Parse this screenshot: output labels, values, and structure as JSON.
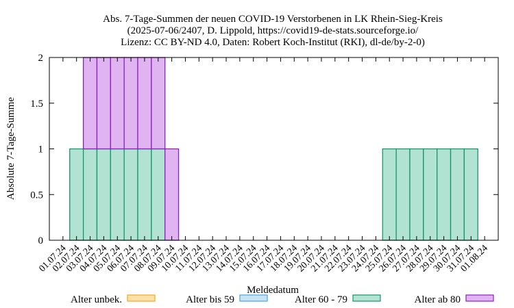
{
  "chart_data": {
    "type": "bar",
    "title_lines": [
      "Abs. 7-Tage-Summen der neuen COVID-19 Verstorbenen in LK Rhein-Sieg-Kreis",
      "(2025-07-06/2407, D. Lippold, https://covid19-de-stats.sourceforge.io/",
      "Lizenz: CC BY-ND 4.0, Daten: Robert Koch-Institut (RKI), dl-de/by-2-0)"
    ],
    "xlabel": "Meldedatum",
    "ylabel": "Absolute 7-Tage-Summe",
    "ylim": [
      0,
      2
    ],
    "y_ticks": [
      0,
      0.5,
      1,
      1.5,
      2
    ],
    "y_tick_labels": [
      "0",
      "0.5",
      "1",
      "1.5",
      "2"
    ],
    "categories": [
      "01.07.24",
      "02.07.24",
      "03.07.24",
      "04.07.24",
      "05.07.24",
      "06.07.24",
      "07.07.24",
      "08.07.24",
      "09.07.24",
      "10.07.24",
      "11.07.24",
      "12.07.24",
      "13.07.24",
      "14.07.24",
      "15.07.24",
      "16.07.24",
      "17.07.24",
      "18.07.24",
      "19.07.24",
      "20.07.24",
      "21.07.24",
      "22.07.24",
      "23.07.24",
      "24.07.24",
      "25.07.24",
      "26.07.24",
      "27.07.24",
      "28.07.24",
      "29.07.24",
      "30.07.24",
      "31.07.24",
      "01.08.24"
    ],
    "stacked": true,
    "legend_position": "bottom",
    "series": [
      {
        "name": "Alter unbek.",
        "color": "#f5a623",
        "fill": "#fbe0a8",
        "values": [
          0,
          0,
          0,
          0,
          0,
          0,
          0,
          0,
          0,
          0,
          0,
          0,
          0,
          0,
          0,
          0,
          0,
          0,
          0,
          0,
          0,
          0,
          0,
          0,
          0,
          0,
          0,
          0,
          0,
          0,
          0,
          0
        ]
      },
      {
        "name": "Alter bis 59",
        "color": "#4aa3df",
        "fill": "#c6e4f6",
        "values": [
          0,
          0,
          0,
          0,
          0,
          0,
          0,
          0,
          0,
          0,
          0,
          0,
          0,
          0,
          0,
          0,
          0,
          0,
          0,
          0,
          0,
          0,
          0,
          0,
          0,
          0,
          0,
          0,
          0,
          0,
          0,
          0
        ]
      },
      {
        "name": "Alter 60 - 79",
        "color": "#17956b",
        "fill": "#b2e2d2",
        "values": [
          0,
          1,
          1,
          1,
          1,
          1,
          1,
          1,
          0,
          0,
          0,
          0,
          0,
          0,
          0,
          0,
          0,
          0,
          0,
          0,
          0,
          0,
          0,
          0,
          1,
          1,
          1,
          1,
          1,
          1,
          1,
          0
        ]
      },
      {
        "name": "Alter ab 80",
        "color": "#8b1ec4",
        "fill": "#e0b4f0",
        "values": [
          0,
          0,
          1,
          1,
          1,
          1,
          1,
          1,
          1,
          0,
          0,
          0,
          0,
          0,
          0,
          0,
          0,
          0,
          0,
          0,
          0,
          0,
          0,
          0,
          0,
          0,
          0,
          0,
          0,
          0,
          0,
          0
        ]
      }
    ]
  }
}
